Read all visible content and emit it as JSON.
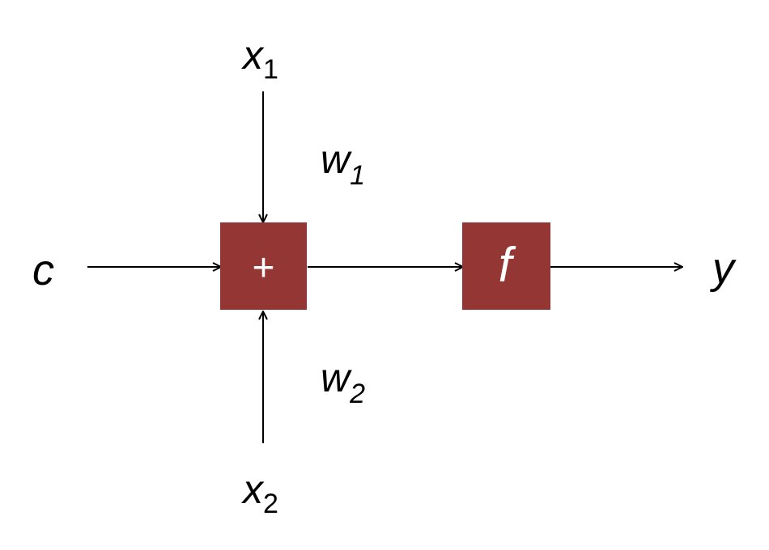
{
  "colors": {
    "box_fill": "#943634",
    "box_text": "#ffffff",
    "line": "#000000",
    "label": "#000000"
  },
  "inputs": {
    "x1": {
      "base": "x",
      "sub": "1"
    },
    "x2": {
      "base": "x",
      "sub": "2"
    },
    "c": "c"
  },
  "weights": {
    "w1": {
      "base": "w",
      "sub": "1"
    },
    "w2": {
      "base": "w",
      "sub": "2"
    }
  },
  "nodes": {
    "sum": "+",
    "activation": "f"
  },
  "output": "y"
}
